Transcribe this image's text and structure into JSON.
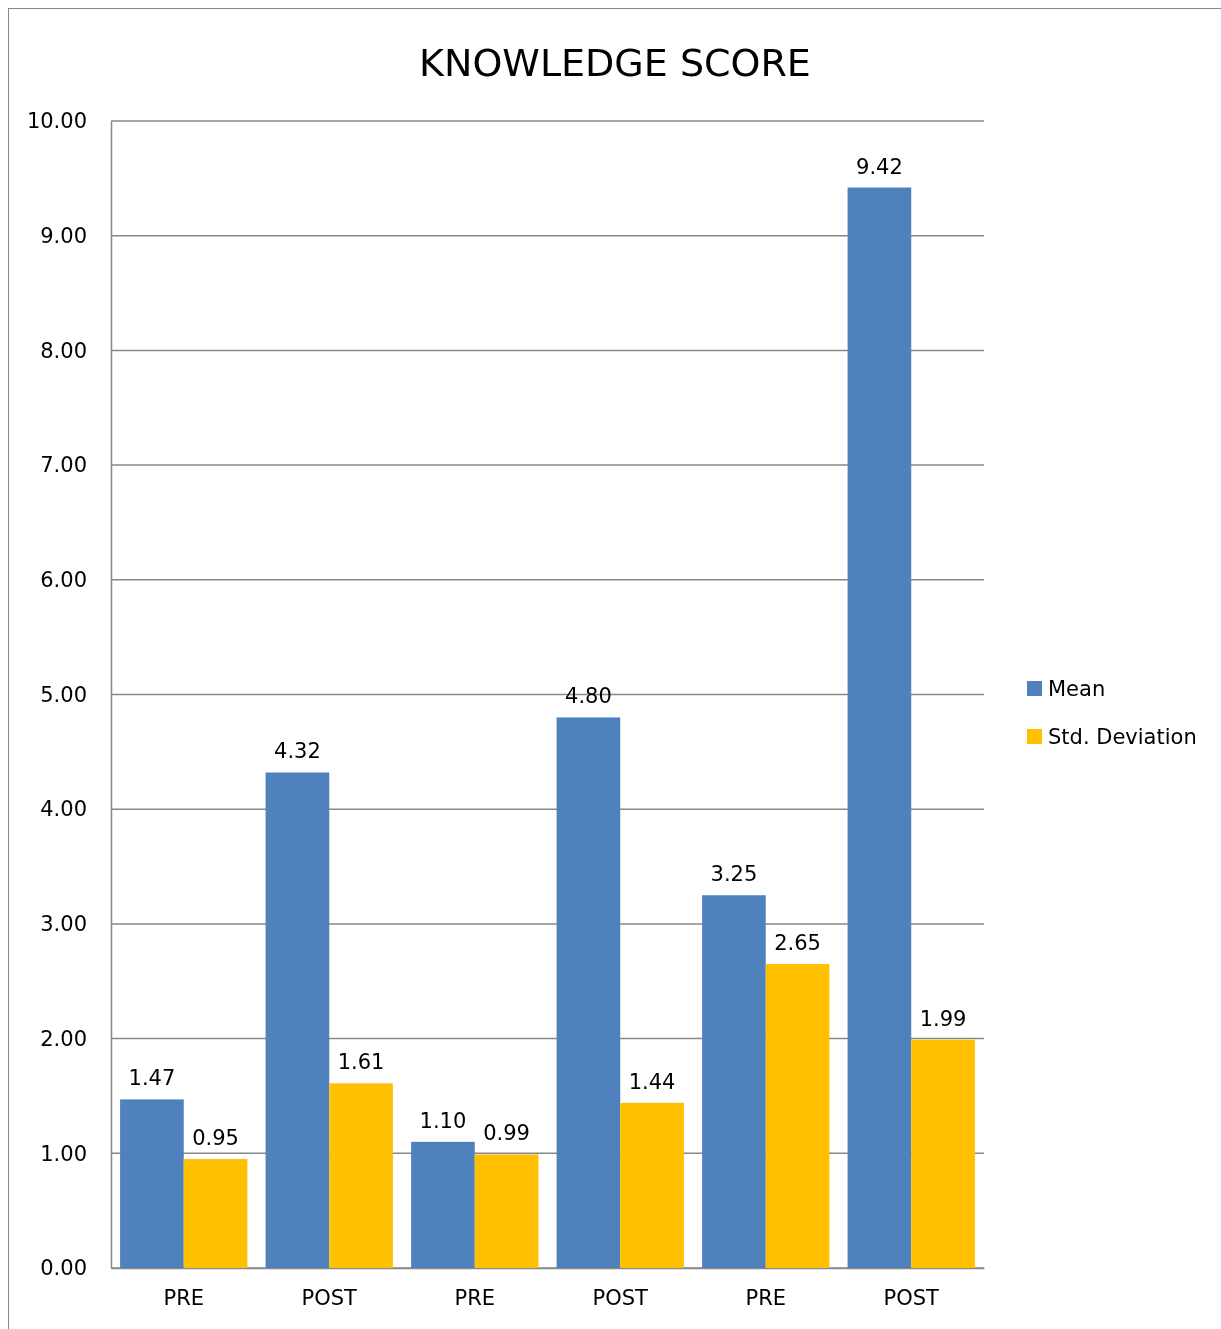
{
  "chart_data": {
    "type": "bar",
    "title": "KNOWLEDGE SCORE",
    "categories": [
      "PRE",
      "POST",
      "PRE",
      "POST",
      "PRE",
      "POST"
    ],
    "series": [
      {
        "name": "Mean",
        "color": "#4f81bd",
        "values": [
          1.47,
          4.32,
          1.1,
          4.8,
          3.25,
          9.42
        ],
        "value_labels": [
          "1.47",
          "4.32",
          "1.10",
          "4.80",
          "3.25",
          "9.42"
        ]
      },
      {
        "name": "Std. Deviation",
        "color": "#ffc000",
        "values": [
          0.95,
          1.61,
          0.99,
          1.44,
          2.65,
          1.99
        ],
        "value_labels": [
          "0.95",
          "1.61",
          "0.99",
          "1.44",
          "2.65",
          "1.99"
        ]
      }
    ],
    "ylim": [
      0,
      10
    ],
    "yticks": [
      {
        "value": 0,
        "label": "0.00"
      },
      {
        "value": 1,
        "label": "1.00"
      },
      {
        "value": 2,
        "label": "2.00"
      },
      {
        "value": 3,
        "label": "3.00"
      },
      {
        "value": 4,
        "label": "4.00"
      },
      {
        "value": 5,
        "label": "5.00"
      },
      {
        "value": 6,
        "label": "6.00"
      },
      {
        "value": 7,
        "label": "7.00"
      },
      {
        "value": 8,
        "label": "8.00"
      },
      {
        "value": 9,
        "label": "9.00"
      },
      {
        "value": 10,
        "label": "10.00"
      }
    ],
    "grid": "y",
    "legend": "right"
  }
}
